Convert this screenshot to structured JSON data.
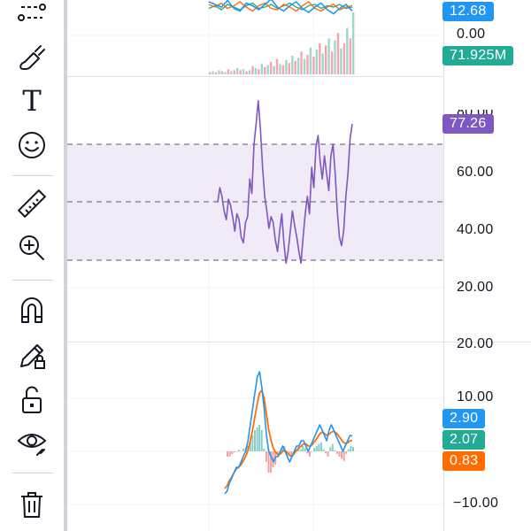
{
  "toolbar": {
    "tools": [
      {
        "name": "trend-line-tool-icon"
      },
      {
        "name": "brush-tool-icon"
      },
      {
        "name": "text-tool-icon",
        "glyph": "T"
      },
      {
        "name": "emoji-tool-icon"
      },
      {
        "name": "ruler-tool-icon"
      },
      {
        "name": "zoom-in-tool-icon"
      },
      {
        "name": "magnet-tool-icon"
      },
      {
        "name": "lock-drawings-icon"
      },
      {
        "name": "unlock-icon"
      },
      {
        "name": "eye-hide-icon"
      },
      {
        "name": "trash-icon"
      }
    ]
  },
  "colors": {
    "rsi_line": "#7e57c2",
    "rsi_band": "#ede7f6",
    "blue": "#2196f3",
    "teal": "#22ab94",
    "orange": "#ff6d00",
    "red": "#f23645"
  },
  "top_pane": {
    "labels": {
      "upper_value": "0.00"
    },
    "badges": {
      "blue": "12.68",
      "volume": "71.925M"
    }
  },
  "rsi_pane": {
    "badge": "77.26",
    "levels": [
      "60.00",
      "40.00",
      "20.00"
    ],
    "top_partial": "80.00"
  },
  "macd_pane": {
    "top_partial": "20.00",
    "levels": [
      "10.00",
      "−10.00"
    ],
    "badges": {
      "macd": "2.90",
      "signal": "2.07",
      "histogram": "0.83"
    }
  },
  "chart_data": {
    "type": "line",
    "rsi": {
      "ylim": [
        20,
        85
      ],
      "bands": [
        30,
        50,
        70
      ],
      "values": [
        50,
        55,
        52,
        47,
        44,
        51,
        49,
        45,
        40,
        46,
        44,
        38,
        36,
        43,
        45,
        58,
        53,
        70,
        77,
        85,
        75,
        62,
        52,
        47,
        41,
        45,
        43,
        37,
        33,
        40,
        46,
        36,
        29,
        33,
        40,
        47,
        42,
        38,
        33,
        29,
        38,
        46,
        52,
        46,
        62,
        55,
        69,
        73,
        64,
        58,
        66,
        60,
        54,
        66,
        70,
        60,
        47,
        38,
        35,
        40,
        52,
        60,
        72,
        77
      ]
    },
    "macd": {
      "ylim": [
        -12,
        22
      ],
      "macd": [
        -8,
        -7.5,
        -6,
        -5,
        -4,
        -3,
        -3,
        -2,
        -1,
        0,
        2,
        5,
        8,
        11,
        14,
        15,
        12,
        8,
        3,
        0,
        -1,
        -2,
        -1,
        -1,
        0,
        1,
        0,
        -1,
        -2,
        -1,
        0,
        1,
        1,
        2,
        2,
        1,
        0,
        1,
        2,
        3,
        4,
        5,
        4,
        3,
        2,
        4,
        5,
        4,
        3,
        2,
        1,
        0,
        1,
        2,
        3,
        2.9
      ],
      "signal": [
        -7,
        -6.5,
        -5.5,
        -4.8,
        -4,
        -3.3,
        -3,
        -2.5,
        -1.8,
        -1,
        0.2,
        2,
        4,
        6.5,
        9,
        11,
        11.5,
        10,
        7,
        4,
        2,
        0.5,
        -0.2,
        -0.6,
        -0.5,
        0,
        0.2,
        -0.3,
        -0.8,
        -0.9,
        -0.4,
        0.2,
        0.6,
        1,
        1.4,
        1.4,
        1,
        1,
        1.4,
        2,
        2.6,
        3.3,
        3.6,
        3.4,
        3,
        3.2,
        3.6,
        3.8,
        3.5,
        3,
        2.4,
        1.8,
        1.5,
        1.6,
        2,
        2.07
      ],
      "histogram": [
        -1,
        -1,
        -0.5,
        -0.2,
        0,
        0.3,
        0,
        0.5,
        0.8,
        1,
        1.8,
        3,
        4,
        4.5,
        5,
        4,
        0.5,
        -2,
        -4,
        -4,
        -3,
        -2.5,
        -0.8,
        -0.4,
        0.5,
        1,
        -0.2,
        -0.7,
        -1.2,
        -0.1,
        0.4,
        0.8,
        0.4,
        1,
        0.6,
        -0.4,
        -1,
        0,
        0.6,
        1,
        1.4,
        1.7,
        0.4,
        -0.4,
        -1,
        0.8,
        1.4,
        0.2,
        -0.5,
        -1,
        -1.4,
        -1.8,
        -0.5,
        0.4,
        1,
        0.83
      ]
    },
    "top_series": {
      "blue": [
        62,
        60,
        58,
        63,
        57,
        55,
        61,
        59,
        56,
        60,
        64,
        58,
        55,
        59,
        62,
        57,
        54,
        58,
        61,
        56,
        53,
        57,
        60,
        55
      ],
      "orange": [
        60,
        58,
        61,
        57,
        59,
        62,
        58,
        55,
        59,
        61,
        57,
        56,
        60,
        58,
        55,
        59,
        62,
        57,
        55,
        58,
        60,
        56,
        58,
        59
      ],
      "teal": [
        57,
        59,
        56,
        60,
        58,
        56,
        59,
        61,
        57,
        58,
        60,
        57,
        59,
        61,
        58,
        56,
        59,
        60,
        57,
        59,
        58,
        60,
        57,
        58
      ]
    },
    "volume": [
      2,
      3,
      2,
      4,
      3,
      2,
      5,
      3,
      4,
      6,
      4,
      5,
      3,
      4,
      8,
      6,
      5,
      10,
      7,
      9,
      12,
      8,
      15,
      10,
      9,
      14,
      11,
      18,
      13,
      16,
      22,
      15,
      19,
      26,
      17,
      24,
      30,
      20,
      28,
      35,
      22,
      33,
      40,
      25,
      30,
      45,
      35,
      60
    ]
  }
}
